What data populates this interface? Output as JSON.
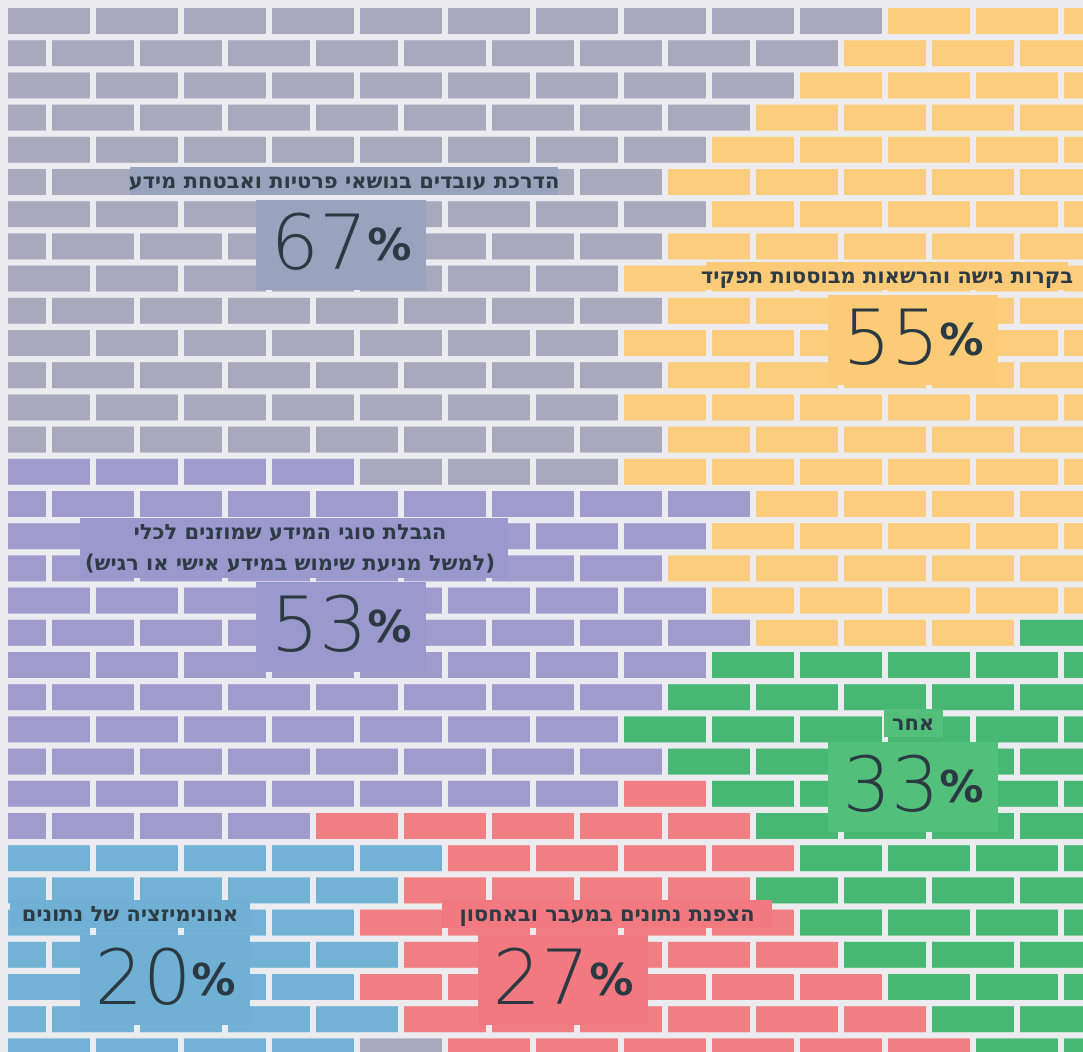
{
  "chart_data": {
    "type": "brickwall",
    "categories": [
      "הדרכת עובדים בנושאי פרטיות ואבטחת מידע",
      "בקרות גישה והרשאות מבוססות תפקיד",
      [
        "הגבלת סוגי המידע שמוזנים לכלי",
        "(למשל מניעת שימוש במידע אישי או רגיש)"
      ],
      "אחר",
      "הצפנת נתונים במעבר ובאחסון",
      "אנונימיזציה של נתונים"
    ],
    "values": [
      67,
      55,
      53,
      33,
      27,
      20
    ],
    "unit": "%",
    "colors": [
      "#a9a9bd",
      "#fbcd7d",
      "#9f9bcc",
      "#46b874",
      "#f07e83",
      "#72b3d5"
    ]
  }
}
